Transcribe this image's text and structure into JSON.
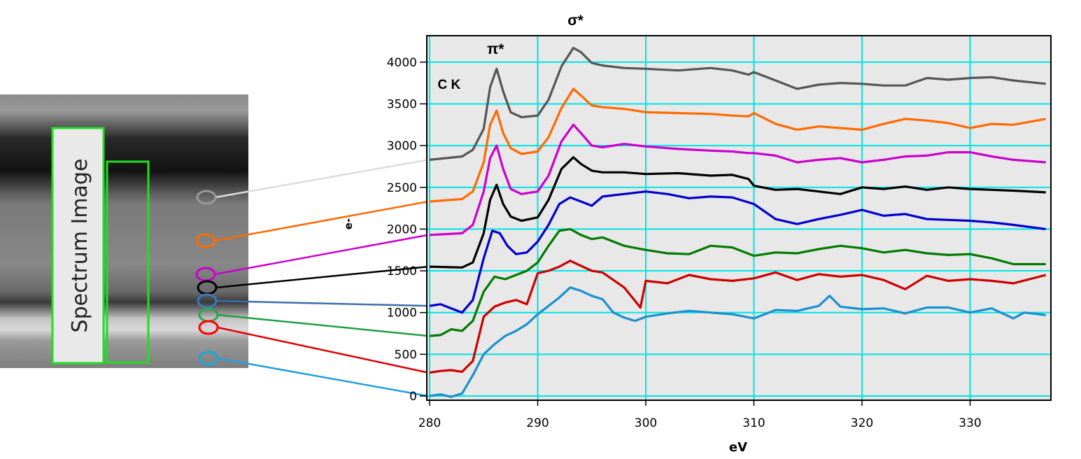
{
  "micrograph": {
    "label": "Spectrum Image"
  },
  "chart_data": {
    "type": "line",
    "title": "",
    "xlabel": "eV",
    "ylabel": "e-",
    "xlim": [
      280,
      337
    ],
    "ylim": [
      -20,
      4300
    ],
    "grid": true,
    "plot_background": "#e8e8e8",
    "grid_color": "#00e5e5",
    "x_ticks": [
      280,
      290,
      300,
      310,
      320,
      330
    ],
    "y_ticks": [
      0,
      500,
      1000,
      1500,
      2000,
      2500,
      3000,
      3500,
      4000
    ],
    "annotations": [
      {
        "text": "σ*",
        "x": 293.5
      },
      {
        "text": "π*",
        "x": 286.1
      },
      {
        "text": "C K",
        "x": 281.8
      }
    ],
    "series": [
      {
        "color": "#555555",
        "marker_color": "#999999",
        "x": [
          280,
          283,
          284,
          285,
          285.6,
          286.2,
          286.8,
          287.5,
          288.5,
          290,
          291,
          292.2,
          293.3,
          294,
          295,
          296,
          298,
          300,
          303,
          306,
          308,
          309.5,
          310,
          312,
          314,
          316,
          318,
          320,
          322,
          324,
          326,
          328,
          330,
          332,
          334,
          337
        ],
        "y": [
          2830,
          2870,
          2950,
          3200,
          3700,
          3920,
          3650,
          3400,
          3340,
          3360,
          3550,
          3950,
          4170,
          4120,
          3990,
          3960,
          3930,
          3920,
          3900,
          3930,
          3900,
          3850,
          3880,
          3780,
          3680,
          3730,
          3750,
          3740,
          3720,
          3720,
          3810,
          3790,
          3810,
          3820,
          3780,
          3740
        ]
      },
      {
        "color": "#ff6a00",
        "marker_color": "#ff6a00",
        "x": [
          280,
          283,
          284,
          285,
          285.6,
          286.2,
          286.8,
          287.5,
          288.5,
          290,
          291,
          292.2,
          293.3,
          294,
          295,
          296,
          298,
          300,
          303,
          306,
          308,
          309.5,
          310,
          312,
          314,
          316,
          318,
          320,
          322,
          324,
          326,
          328,
          330,
          332,
          334,
          337
        ],
        "y": [
          2330,
          2360,
          2450,
          2800,
          3250,
          3420,
          3150,
          2970,
          2900,
          2930,
          3100,
          3450,
          3680,
          3600,
          3480,
          3460,
          3440,
          3400,
          3390,
          3380,
          3360,
          3350,
          3390,
          3260,
          3190,
          3230,
          3210,
          3190,
          3260,
          3320,
          3300,
          3270,
          3210,
          3260,
          3250,
          3320
        ]
      },
      {
        "color": "#cc00cc",
        "marker_color": "#cc00cc",
        "x": [
          280,
          283,
          284,
          285,
          285.6,
          286.2,
          286.8,
          287.5,
          288.5,
          290,
          291,
          292.2,
          293.3,
          294,
          295,
          296,
          298,
          300,
          303,
          306,
          308,
          309.5,
          310,
          312,
          314,
          316,
          318,
          320,
          322,
          324,
          326,
          328,
          330,
          332,
          334,
          337
        ],
        "y": [
          1930,
          1950,
          2050,
          2450,
          2850,
          3000,
          2720,
          2480,
          2420,
          2450,
          2640,
          3050,
          3250,
          3150,
          3000,
          2980,
          3020,
          2990,
          2960,
          2940,
          2930,
          2910,
          2910,
          2880,
          2800,
          2830,
          2850,
          2800,
          2830,
          2870,
          2880,
          2920,
          2920,
          2870,
          2830,
          2800
        ]
      },
      {
        "color": "#000000",
        "marker_color": "#000000",
        "x": [
          280,
          283,
          284,
          285,
          285.6,
          286.2,
          286.8,
          287.5,
          288.5,
          290,
          291,
          292.2,
          293.3,
          294,
          295,
          296,
          298,
          300,
          303,
          306,
          308,
          309.5,
          310,
          312,
          314,
          316,
          318,
          320,
          322,
          324,
          326,
          328,
          330,
          332,
          334,
          337
        ],
        "y": [
          1550,
          1540,
          1600,
          1950,
          2350,
          2530,
          2300,
          2150,
          2100,
          2140,
          2350,
          2720,
          2860,
          2780,
          2700,
          2680,
          2680,
          2660,
          2670,
          2640,
          2650,
          2600,
          2520,
          2470,
          2480,
          2450,
          2420,
          2500,
          2480,
          2510,
          2470,
          2500,
          2480,
          2470,
          2460,
          2440
        ]
      },
      {
        "color": "#0000cc",
        "marker_color": "#3a7ac0",
        "x": [
          280,
          281,
          282,
          283,
          284,
          285,
          285.8,
          286.5,
          287.2,
          288,
          289,
          290,
          291,
          292,
          293,
          294,
          295,
          296,
          298,
          300,
          302,
          304,
          306,
          308,
          310,
          312,
          314,
          316,
          318,
          320,
          322,
          324,
          326,
          328,
          330,
          332,
          334,
          337
        ],
        "y": [
          1080,
          1100,
          1050,
          1000,
          1150,
          1650,
          1980,
          1950,
          1800,
          1700,
          1720,
          1850,
          2050,
          2300,
          2380,
          2330,
          2280,
          2390,
          2420,
          2450,
          2420,
          2370,
          2390,
          2380,
          2300,
          2120,
          2060,
          2120,
          2170,
          2230,
          2160,
          2180,
          2120,
          2110,
          2100,
          2080,
          2050,
          2000
        ]
      },
      {
        "color": "#007a00",
        "marker_color": "#2aa84a",
        "x": [
          280,
          281,
          282,
          283,
          284,
          285,
          286,
          287,
          288,
          289,
          290,
          291,
          292,
          293,
          294,
          295,
          296,
          298,
          300,
          302,
          304,
          306,
          308,
          310,
          312,
          314,
          316,
          318,
          320,
          322,
          324,
          326,
          328,
          330,
          332,
          334,
          337
        ],
        "y": [
          720,
          730,
          800,
          780,
          900,
          1250,
          1430,
          1400,
          1450,
          1500,
          1600,
          1800,
          1980,
          2000,
          1930,
          1880,
          1900,
          1800,
          1750,
          1710,
          1700,
          1800,
          1780,
          1680,
          1720,
          1710,
          1760,
          1800,
          1770,
          1720,
          1750,
          1710,
          1690,
          1700,
          1650,
          1580,
          1580
        ]
      },
      {
        "color": "#cc0000",
        "marker_color": "#ff0000",
        "x": [
          280,
          281,
          282,
          283,
          284,
          285,
          286,
          287,
          288,
          289,
          290,
          291,
          292,
          293,
          294,
          295,
          296,
          298,
          299.5,
          300,
          302,
          304,
          306,
          308,
          310,
          312,
          314,
          316,
          318,
          320,
          322,
          324,
          326,
          328,
          330,
          332,
          334,
          337
        ],
        "y": [
          280,
          300,
          310,
          290,
          420,
          950,
          1070,
          1120,
          1150,
          1100,
          1470,
          1500,
          1550,
          1620,
          1560,
          1500,
          1480,
          1300,
          1060,
          1380,
          1350,
          1450,
          1400,
          1380,
          1410,
          1480,
          1390,
          1460,
          1430,
          1450,
          1390,
          1280,
          1440,
          1380,
          1400,
          1380,
          1350,
          1450
        ]
      },
      {
        "color": "#1a90cc",
        "marker_color": "#1aa8e0",
        "x": [
          280,
          281,
          282,
          283,
          284,
          285,
          286,
          287,
          288,
          289,
          290,
          291,
          292,
          293,
          294,
          295,
          296,
          297,
          298,
          299,
          300,
          302,
          304,
          306,
          308,
          310,
          312,
          314,
          316,
          317,
          318,
          320,
          322,
          324,
          326,
          328,
          330,
          332,
          334,
          335,
          337
        ],
        "y": [
          0,
          20,
          -10,
          30,
          250,
          500,
          620,
          720,
          780,
          860,
          980,
          1080,
          1180,
          1300,
          1260,
          1200,
          1160,
          1000,
          940,
          900,
          950,
          990,
          1020,
          1000,
          980,
          930,
          1030,
          1020,
          1080,
          1200,
          1070,
          1040,
          1050,
          990,
          1060,
          1060,
          1000,
          1050,
          930,
          1000,
          970
        ]
      }
    ]
  }
}
